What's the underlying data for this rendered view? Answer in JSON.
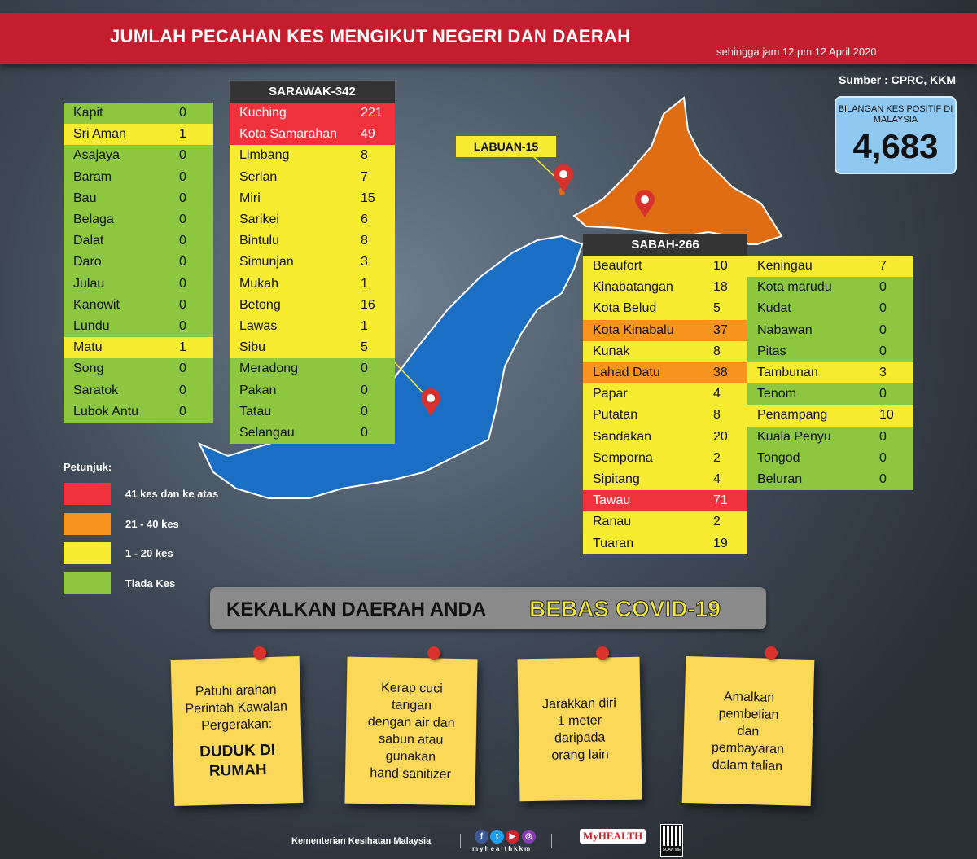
{
  "header": {
    "title": "JUMLAH PECAHAN KES MENGIKUT NEGERI DAN DAERAH",
    "subtitle": "sehingga jam 12 pm 12 April 2020",
    "source": "Sumber : CPRC, KKM"
  },
  "total": {
    "label": "BILANGAN KES POSITIF DI MALAYSIA",
    "value": "4,683"
  },
  "colors": {
    "red": "#f0323c",
    "orange": "#f7941d",
    "yellow": "#f7ec2f",
    "green": "#8dc63f",
    "sarawak": "#1a6fc4",
    "sabah": "#de6d14",
    "banner": "#c41e2e"
  },
  "sarawak": {
    "title": "SARAWAK-342",
    "col1": [
      [
        "Kapit",
        0
      ],
      [
        "Sri Aman",
        1
      ],
      [
        "Asajaya",
        0
      ],
      [
        "Baram",
        0
      ],
      [
        "Bau",
        0
      ],
      [
        "Belaga",
        0
      ],
      [
        "Dalat",
        0
      ],
      [
        "Daro",
        0
      ],
      [
        "Julau",
        0
      ],
      [
        "Kanowit",
        0
      ],
      [
        "Lundu",
        0
      ],
      [
        "Matu",
        1
      ],
      [
        "Song",
        0
      ],
      [
        "Saratok",
        0
      ],
      [
        "Lubok Antu",
        0
      ]
    ],
    "col2": [
      [
        "Kuching",
        221
      ],
      [
        "Kota Samarahan",
        49
      ],
      [
        "Limbang",
        8
      ],
      [
        "Serian",
        7
      ],
      [
        "Miri",
        15
      ],
      [
        "Sarikei",
        6
      ],
      [
        "Bintulu",
        8
      ],
      [
        "Simunjan",
        3
      ],
      [
        "Mukah",
        1
      ],
      [
        "Betong",
        16
      ],
      [
        "Lawas",
        1
      ],
      [
        "Sibu",
        5
      ],
      [
        "Meradong",
        0
      ],
      [
        "Pakan",
        0
      ],
      [
        "Tatau",
        0
      ],
      [
        "Selangau",
        0
      ]
    ]
  },
  "labuan": {
    "title": "LABUAN-15"
  },
  "sabah": {
    "title": "SABAH-266",
    "col1": [
      [
        "Beaufort",
        10
      ],
      [
        "Kinabatangan",
        18
      ],
      [
        "Kota Belud",
        5
      ],
      [
        "Kota Kinabalu",
        37
      ],
      [
        "Kunak",
        8
      ],
      [
        "Lahad Datu",
        38
      ],
      [
        "Papar",
        4
      ],
      [
        "Putatan",
        8
      ],
      [
        "Sandakan",
        20
      ],
      [
        "Semporna",
        2
      ],
      [
        "Sipitang",
        4
      ],
      [
        "Tawau",
        71
      ],
      [
        "Ranau",
        2
      ],
      [
        "Tuaran",
        19
      ]
    ],
    "col2": [
      [
        "Keningau",
        7
      ],
      [
        "Kota marudu",
        0
      ],
      [
        "Kudat",
        0
      ],
      [
        "Nabawan",
        0
      ],
      [
        "Pitas",
        0
      ],
      [
        "Tambunan",
        3
      ],
      [
        "Tenom",
        0
      ],
      [
        "Penampang",
        10
      ],
      [
        "Kuala Penyu",
        0
      ],
      [
        "Tongod",
        0
      ],
      [
        "Beluran",
        0
      ]
    ]
  },
  "legend": {
    "title": "Petunjuk:",
    "items": [
      {
        "label": "41 kes dan ke atas",
        "color": "#f0323c"
      },
      {
        "label": "21 - 40 kes",
        "color": "#f7941d"
      },
      {
        "label": "1 - 20 kes",
        "color": "#f7ec2f"
      },
      {
        "label": "Tiada Kes",
        "color": "#8dc63f"
      }
    ]
  },
  "slogan": {
    "part1": "KEKALKAN DAERAH ANDA",
    "part2": "BEBAS COVID-19"
  },
  "notes": [
    {
      "lines": [
        "Patuhi arahan",
        "Perintah Kawalan",
        "Pergerakan:"
      ],
      "emph": [
        "DUDUK DI",
        "RUMAH"
      ]
    },
    {
      "lines": [
        "Kerap cuci",
        "tangan",
        "dengan air dan",
        "sabun atau",
        "gunakan",
        "hand sanitizer"
      ],
      "emph": []
    },
    {
      "lines": [
        "Jarakkan diri",
        "1 meter",
        "daripada",
        "orang lain"
      ],
      "emph": []
    },
    {
      "lines": [
        "Amalkan",
        "pembelian",
        "dan",
        "pembayaran",
        "dalam talian"
      ],
      "emph": []
    }
  ],
  "footer": {
    "org": "Kementerian Kesihatan Malaysia",
    "social_handle": "myhealthkkm",
    "logo": "MyHEALTH",
    "qr_label": "SCAN ME"
  }
}
